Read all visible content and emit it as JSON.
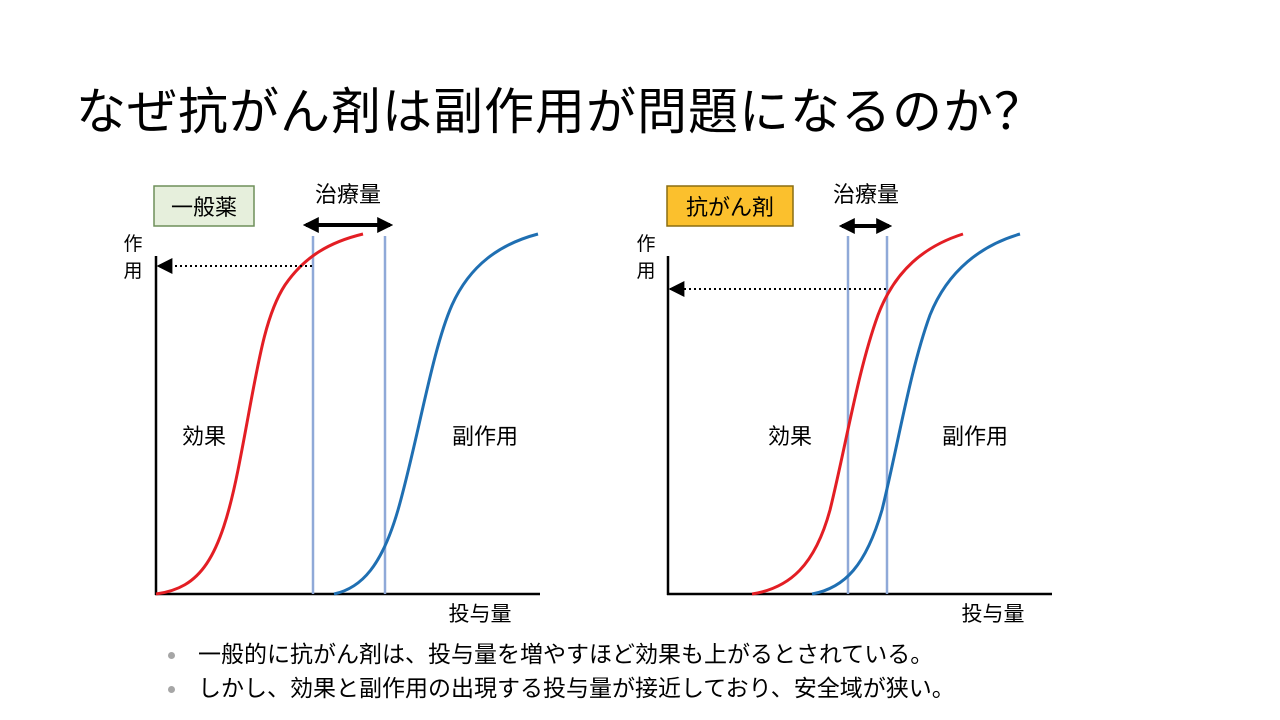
{
  "slide": {
    "title": "なぜ抗がん剤は副作用が問題になるのか？"
  },
  "panels": [
    {
      "badge": "一般薬",
      "badge_fill": "#e6efdc",
      "badge_stroke": "#6f8f5a",
      "window_label": "治療量",
      "y_axis_label_top": "作",
      "y_axis_label_bottom": "用",
      "x_axis_label": "投与量",
      "effect_label": "効果",
      "side_effect_label": "副作用"
    },
    {
      "badge": "抗がん剤",
      "badge_fill": "#fbc02d",
      "badge_stroke": "#8a6d12",
      "window_label": "治療量",
      "y_axis_label_top": "作",
      "y_axis_label_bottom": "用",
      "x_axis_label": "投与量",
      "effect_label": "効果",
      "side_effect_label": "副作用"
    }
  ],
  "bullets": [
    "一般的に抗がん剤は、投与量を増やすほど効果も上がるとされている。",
    "しかし、効果と副作用の出現する投与量が接近しており、安全域が狭い。"
  ],
  "colors": {
    "effect_curve": "#e31e24",
    "side_effect_curve": "#1f6fb2",
    "window_line": "#8fa9d8",
    "bullet_dot": "#a6a6a6"
  }
}
